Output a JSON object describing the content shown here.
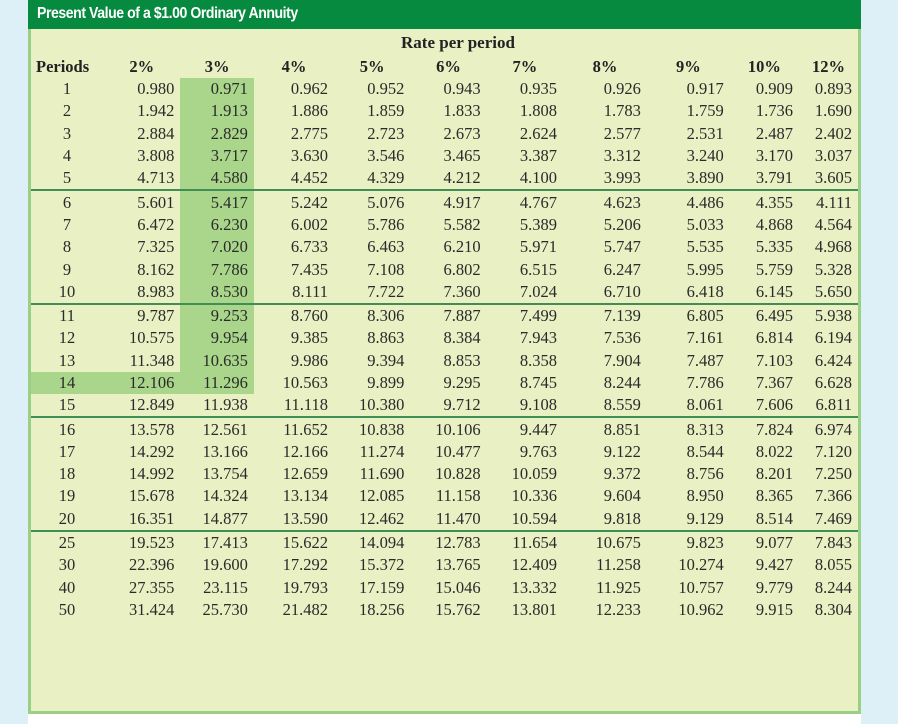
{
  "title": "Present Value of a $1.00 Ordinary Annuity",
  "rate_header": "Rate per period",
  "periods_label": "Periods",
  "rates": [
    "2%",
    "3%",
    "4%",
    "5%",
    "6%",
    "7%",
    "8%",
    "9%",
    "10%",
    "12%"
  ],
  "highlight": {
    "column": "3%",
    "row": "14",
    "color": "#a9d68b"
  },
  "colors": {
    "title_bar": "#058a3f",
    "panel_bg": "#e8f0c4",
    "panel_border": "#9ccf86",
    "separator": "#3f8f55",
    "page_bg": "#ddf0f8"
  },
  "rows": [
    {
      "period": "1",
      "values": [
        "0.980",
        "0.971",
        "0.962",
        "0.952",
        "0.943",
        "0.935",
        "0.926",
        "0.917",
        "0.909",
        "0.893"
      ]
    },
    {
      "period": "2",
      "values": [
        "1.942",
        "1.913",
        "1.886",
        "1.859",
        "1.833",
        "1.808",
        "1.783",
        "1.759",
        "1.736",
        "1.690"
      ]
    },
    {
      "period": "3",
      "values": [
        "2.884",
        "2.829",
        "2.775",
        "2.723",
        "2.673",
        "2.624",
        "2.577",
        "2.531",
        "2.487",
        "2.402"
      ]
    },
    {
      "period": "4",
      "values": [
        "3.808",
        "3.717",
        "3.630",
        "3.546",
        "3.465",
        "3.387",
        "3.312",
        "3.240",
        "3.170",
        "3.037"
      ]
    },
    {
      "period": "5",
      "values": [
        "4.713",
        "4.580",
        "4.452",
        "4.329",
        "4.212",
        "4.100",
        "3.993",
        "3.890",
        "3.791",
        "3.605"
      ]
    },
    {
      "period": "6",
      "values": [
        "5.601",
        "5.417",
        "5.242",
        "5.076",
        "4.917",
        "4.767",
        "4.623",
        "4.486",
        "4.355",
        "4.111"
      ]
    },
    {
      "period": "7",
      "values": [
        "6.472",
        "6.230",
        "6.002",
        "5.786",
        "5.582",
        "5.389",
        "5.206",
        "5.033",
        "4.868",
        "4.564"
      ]
    },
    {
      "period": "8",
      "values": [
        "7.325",
        "7.020",
        "6.733",
        "6.463",
        "6.210",
        "5.971",
        "5.747",
        "5.535",
        "5.335",
        "4.968"
      ]
    },
    {
      "period": "9",
      "values": [
        "8.162",
        "7.786",
        "7.435",
        "7.108",
        "6.802",
        "6.515",
        "6.247",
        "5.995",
        "5.759",
        "5.328"
      ]
    },
    {
      "period": "10",
      "values": [
        "8.983",
        "8.530",
        "8.111",
        "7.722",
        "7.360",
        "7.024",
        "6.710",
        "6.418",
        "6.145",
        "5.650"
      ]
    },
    {
      "period": "11",
      "values": [
        "9.787",
        "9.253",
        "8.760",
        "8.306",
        "7.887",
        "7.499",
        "7.139",
        "6.805",
        "6.495",
        "5.938"
      ]
    },
    {
      "period": "12",
      "values": [
        "10.575",
        "9.954",
        "9.385",
        "8.863",
        "8.384",
        "7.943",
        "7.536",
        "7.161",
        "6.814",
        "6.194"
      ]
    },
    {
      "period": "13",
      "values": [
        "11.348",
        "10.635",
        "9.986",
        "9.394",
        "8.853",
        "8.358",
        "7.904",
        "7.487",
        "7.103",
        "6.424"
      ]
    },
    {
      "period": "14",
      "values": [
        "12.106",
        "11.296",
        "10.563",
        "9.899",
        "9.295",
        "8.745",
        "8.244",
        "7.786",
        "7.367",
        "6.628"
      ]
    },
    {
      "period": "15",
      "values": [
        "12.849",
        "11.938",
        "11.118",
        "10.380",
        "9.712",
        "9.108",
        "8.559",
        "8.061",
        "7.606",
        "6.811"
      ]
    },
    {
      "period": "16",
      "values": [
        "13.578",
        "12.561",
        "11.652",
        "10.838",
        "10.106",
        "9.447",
        "8.851",
        "8.313",
        "7.824",
        "6.974"
      ]
    },
    {
      "period": "17",
      "values": [
        "14.292",
        "13.166",
        "12.166",
        "11.274",
        "10.477",
        "9.763",
        "9.122",
        "8.544",
        "8.022",
        "7.120"
      ]
    },
    {
      "period": "18",
      "values": [
        "14.992",
        "13.754",
        "12.659",
        "11.690",
        "10.828",
        "10.059",
        "9.372",
        "8.756",
        "8.201",
        "7.250"
      ]
    },
    {
      "period": "19",
      "values": [
        "15.678",
        "14.324",
        "13.134",
        "12.085",
        "11.158",
        "10.336",
        "9.604",
        "8.950",
        "8.365",
        "7.366"
      ]
    },
    {
      "period": "20",
      "values": [
        "16.351",
        "14.877",
        "13.590",
        "12.462",
        "11.470",
        "10.594",
        "9.818",
        "9.129",
        "8.514",
        "7.469"
      ]
    },
    {
      "period": "25",
      "values": [
        "19.523",
        "17.413",
        "15.622",
        "14.094",
        "12.783",
        "11.654",
        "10.675",
        "9.823",
        "9.077",
        "7.843"
      ]
    },
    {
      "period": "30",
      "values": [
        "22.396",
        "19.600",
        "17.292",
        "15.372",
        "13.765",
        "12.409",
        "11.258",
        "10.274",
        "9.427",
        "8.055"
      ]
    },
    {
      "period": "40",
      "values": [
        "27.355",
        "23.115",
        "19.793",
        "17.159",
        "15.046",
        "13.332",
        "11.925",
        "10.757",
        "9.779",
        "8.244"
      ]
    },
    {
      "period": "50",
      "values": [
        "31.424",
        "25.730",
        "21.482",
        "18.256",
        "15.762",
        "13.801",
        "12.233",
        "10.962",
        "9.915",
        "8.304"
      ]
    }
  ]
}
